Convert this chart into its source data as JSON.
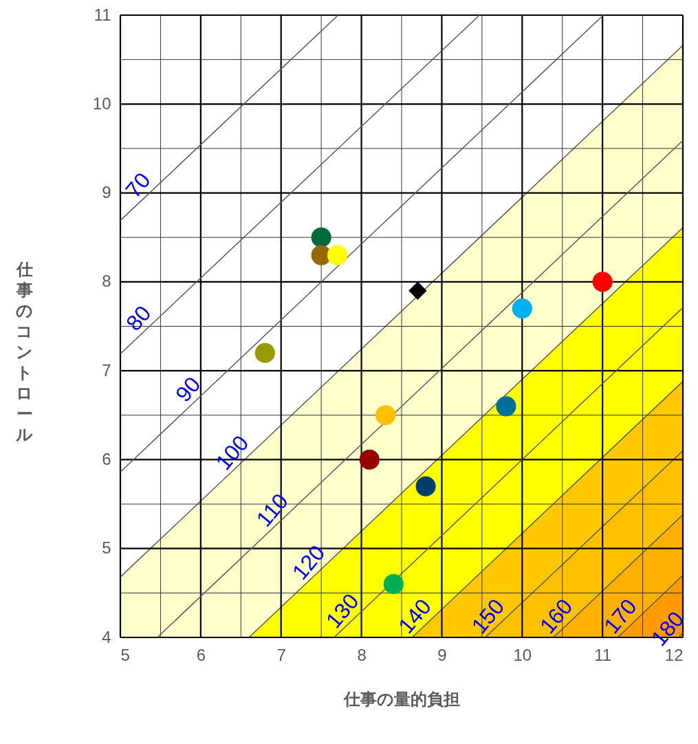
{
  "chart_data": {
    "type": "scatter",
    "xlabel": "仕事の量的負担",
    "ylabel": "仕事のコントロール",
    "xlim": [
      5,
      12
    ],
    "ylim": [
      4,
      11
    ],
    "xticks": [
      5,
      {
        "value": 5.5,
        "label": null
      },
      6,
      {
        "value": 6.5,
        "label": null
      },
      7,
      {
        "value": 7.5,
        "label": null
      },
      8,
      {
        "value": 8.5,
        "label": null
      },
      9,
      {
        "value": 9.5,
        "label": null
      },
      10,
      {
        "value": 10.5,
        "label": null
      },
      11,
      {
        "value": 11.5,
        "label": null
      },
      12
    ],
    "yticks": [
      4,
      {
        "value": 4.5,
        "label": null
      },
      5,
      {
        "value": 5.5,
        "label": null
      },
      6,
      {
        "value": 6.5,
        "label": null
      },
      7,
      {
        "value": 7.5,
        "label": null
      },
      8,
      {
        "value": 8.5,
        "label": null
      },
      9,
      {
        "value": 9.5,
        "label": null
      },
      10,
      {
        "value": 10.5,
        "label": null
      },
      11
    ],
    "grid": true,
    "series": [
      {
        "type": "area",
        "name": "100",
        "color": "#ffffcc",
        "x": [
          5,
          12
        ],
        "values": [
          4.68,
          10.66
        ]
      },
      {
        "type": "area",
        "name": "120",
        "color": "#ffff00",
        "x": [
          6.6,
          12
        ],
        "values": [
          4,
          8.61
        ]
      },
      {
        "type": "area",
        "name": "140",
        "color": "#ffc800",
        "x": [
          8.63,
          12
        ],
        "values": [
          4,
          6.88
        ]
      },
      {
        "type": "area",
        "name": "150",
        "color": "#ffc000",
        "x": [
          9.54,
          12
        ],
        "values": [
          4,
          6.1
        ]
      },
      {
        "type": "area",
        "name": "160",
        "color": "#ffb000",
        "x": [
          10.39,
          12
        ],
        "values": [
          4,
          5.38
        ]
      },
      {
        "type": "area",
        "name": "170",
        "color": "#ff9a00",
        "x": [
          11.19,
          12
        ],
        "values": [
          4,
          4.7
        ]
      },
      {
        "type": "line",
        "name": "70",
        "color": "#595959",
        "line_style": "solid",
        "x": [
          5,
          7.71
        ],
        "values": [
          8.69,
          11
        ]
      },
      {
        "type": "line",
        "name": "80",
        "color": "#595959",
        "line_style": "solid",
        "x": [
          5,
          9.47
        ],
        "values": [
          7.19,
          11
        ]
      },
      {
        "type": "line",
        "name": "90",
        "color": "#595959",
        "line_style": "solid",
        "x": [
          5,
          11.01
        ],
        "values": [
          5.86,
          11
        ]
      },
      {
        "type": "line",
        "name": "110",
        "color": "#595959",
        "line_style": "solid",
        "x": [
          5.46,
          12
        ],
        "values": [
          4,
          9.59
        ]
      },
      {
        "type": "line",
        "name": "130",
        "color": "#595959",
        "line_style": "solid",
        "x": [
          7.66,
          12
        ],
        "values": [
          4,
          7.71
        ]
      },
      {
        "type": "line",
        "name": "180",
        "color": "#595959",
        "line_style": "solid",
        "x": [
          11.94,
          12
        ],
        "values": [
          4,
          4.05
        ]
      },
      {
        "marker": "circle",
        "x": [
          7.5,
          7.5,
          7.7,
          6.8,
          11.0,
          10.0,
          8.3,
          9.8,
          8.1,
          8.8,
          8.4
        ],
        "values": [
          8.5,
          8.3,
          8.3,
          7.2,
          8.0,
          7.7,
          6.5,
          6.6,
          6.0,
          5.7,
          4.6
        ],
        "colors": [
          "#00693e",
          "#996600",
          "#ffff00",
          "#999900",
          "#ff0000",
          "#00b0f0",
          "#ffc000",
          "#00709a",
          "#990000",
          "#003f6e",
          "#00b050"
        ]
      },
      {
        "marker": "diamond",
        "x": [
          8.7
        ],
        "values": [
          7.9
        ],
        "colors": [
          "#000000"
        ]
      }
    ]
  }
}
